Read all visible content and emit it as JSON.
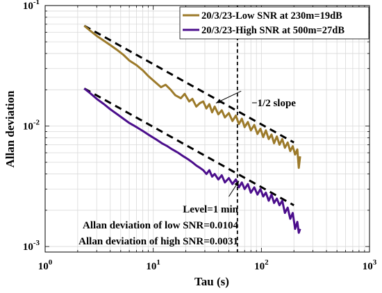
{
  "chart_data": {
    "type": "line",
    "title": "",
    "xlabel": "Tau (s)",
    "ylabel": "Allan deviation",
    "xscale": "log",
    "yscale": "log",
    "xlim": [
      1,
      1000
    ],
    "ylim": [
      0.0009,
      0.1
    ],
    "grid": true,
    "legend_position": "top-right",
    "x_ticks": [
      {
        "value": 1,
        "base": "10",
        "exp": "0"
      },
      {
        "value": 10,
        "base": "10",
        "exp": "1"
      },
      {
        "value": 100,
        "base": "10",
        "exp": "2"
      },
      {
        "value": 1000,
        "base": "10",
        "exp": "3"
      }
    ],
    "y_ticks": [
      {
        "value": 0.001,
        "base": "10",
        "exp": "-3"
      },
      {
        "value": 0.01,
        "base": "10",
        "exp": "-2"
      },
      {
        "value": 0.1,
        "base": "10",
        "exp": "-1"
      }
    ],
    "series": [
      {
        "name": "20/3/23-Low SNR at 230m=19dB",
        "color": "#9C7A2A",
        "points": [
          [
            2.3,
            0.068
          ],
          [
            2.6,
            0.062
          ],
          [
            3.0,
            0.056
          ],
          [
            3.5,
            0.051
          ],
          [
            4.0,
            0.047
          ],
          [
            4.6,
            0.043
          ],
          [
            5.3,
            0.039
          ],
          [
            6.0,
            0.035
          ],
          [
            7.0,
            0.032
          ],
          [
            8.0,
            0.029
          ],
          [
            9.0,
            0.026
          ],
          [
            10.5,
            0.023
          ],
          [
            11.8,
            0.021
          ],
          [
            13.0,
            0.022
          ],
          [
            14.5,
            0.02
          ],
          [
            16.0,
            0.018
          ],
          [
            18.0,
            0.017
          ],
          [
            19.5,
            0.0185
          ],
          [
            21.5,
            0.016
          ],
          [
            23.0,
            0.0168
          ],
          [
            25.0,
            0.0145
          ],
          [
            27.0,
            0.0155
          ],
          [
            29.0,
            0.016
          ],
          [
            31.0,
            0.014
          ],
          [
            33.0,
            0.0152
          ],
          [
            35.0,
            0.013
          ],
          [
            37.0,
            0.0145
          ],
          [
            40.0,
            0.0125
          ],
          [
            43.0,
            0.0135
          ],
          [
            46.0,
            0.0118
          ],
          [
            50.0,
            0.0128
          ],
          [
            54.0,
            0.011
          ],
          [
            58.0,
            0.0122
          ],
          [
            62.0,
            0.0104
          ],
          [
            66.0,
            0.0115
          ],
          [
            70.0,
            0.0098
          ],
          [
            75.0,
            0.0108
          ],
          [
            80.0,
            0.0092
          ],
          [
            86.0,
            0.0102
          ],
          [
            92.0,
            0.0086
          ],
          [
            98.0,
            0.0095
          ],
          [
            104.0,
            0.0081
          ],
          [
            110.0,
            0.0092
          ],
          [
            117.0,
            0.0078
          ],
          [
            124.0,
            0.0085
          ],
          [
            131.0,
            0.0072
          ],
          [
            139.0,
            0.0082
          ],
          [
            147.0,
            0.007
          ],
          [
            156.0,
            0.0078
          ],
          [
            165.0,
            0.0066
          ],
          [
            175.0,
            0.0073
          ],
          [
            185.0,
            0.0062
          ],
          [
            195.0,
            0.0068
          ],
          [
            205.0,
            0.0058
          ],
          [
            215.0,
            0.0064
          ],
          [
            222.0,
            0.0045
          ],
          [
            228.0,
            0.0056
          ]
        ]
      },
      {
        "name": "20/3/23-High SNR at 500m=27dB",
        "color": "#4B0E8C",
        "points": [
          [
            2.3,
            0.0205
          ],
          [
            2.6,
            0.0188
          ],
          [
            3.0,
            0.0168
          ],
          [
            3.5,
            0.0152
          ],
          [
            4.0,
            0.0138
          ],
          [
            4.6,
            0.0126
          ],
          [
            5.3,
            0.0115
          ],
          [
            6.0,
            0.0106
          ],
          [
            7.0,
            0.0098
          ],
          [
            8.0,
            0.0091
          ],
          [
            9.0,
            0.0085
          ],
          [
            10.5,
            0.0078
          ],
          [
            12.0,
            0.0072
          ],
          [
            13.5,
            0.0068
          ],
          [
            15.0,
            0.0064
          ],
          [
            17.0,
            0.006
          ],
          [
            19.0,
            0.0056
          ],
          [
            21.0,
            0.0053
          ],
          [
            23.0,
            0.005
          ],
          [
            25.0,
            0.0047
          ],
          [
            27.0,
            0.0045
          ],
          [
            29.0,
            0.0043
          ],
          [
            31.0,
            0.004
          ],
          [
            33.0,
            0.0043
          ],
          [
            35.0,
            0.0038
          ],
          [
            37.0,
            0.004
          ],
          [
            40.0,
            0.0036
          ],
          [
            43.0,
            0.0039
          ],
          [
            46.0,
            0.0034
          ],
          [
            50.0,
            0.0037
          ],
          [
            54.0,
            0.0033
          ],
          [
            58.0,
            0.0036
          ],
          [
            62.0,
            0.0031
          ],
          [
            66.0,
            0.0034
          ],
          [
            70.0,
            0.003
          ],
          [
            75.0,
            0.0033
          ],
          [
            80.0,
            0.0028
          ],
          [
            86.0,
            0.0031
          ],
          [
            92.0,
            0.0027
          ],
          [
            98.0,
            0.003
          ],
          [
            104.0,
            0.0026
          ],
          [
            110.0,
            0.0028
          ],
          [
            117.0,
            0.0024
          ],
          [
            124.0,
            0.0027
          ],
          [
            131.0,
            0.0023
          ],
          [
            139.0,
            0.0025
          ],
          [
            147.0,
            0.0022
          ],
          [
            156.0,
            0.0024
          ],
          [
            165.0,
            0.0019
          ],
          [
            175.0,
            0.0021
          ],
          [
            185.0,
            0.0017
          ],
          [
            195.0,
            0.0019
          ],
          [
            205.0,
            0.0014
          ],
          [
            215.0,
            0.0016
          ],
          [
            222.0,
            0.0013
          ],
          [
            228.0,
            0.0014
          ]
        ]
      }
    ],
    "reference_lines": [
      {
        "kind": "fit",
        "style": "dashed",
        "color": "#000000",
        "points": [
          [
            2.3,
            0.068
          ],
          [
            200,
            0.0073
          ]
        ]
      },
      {
        "kind": "fit",
        "style": "dashed",
        "color": "#000000",
        "points": [
          [
            2.3,
            0.0205
          ],
          [
            200,
            0.0022
          ]
        ]
      },
      {
        "kind": "vertical",
        "style": "dashed",
        "color": "#000000",
        "x": 60
      }
    ],
    "annotations": [
      {
        "text": "−1/2 slope",
        "arrow_to": [
          38,
          0.0155
        ],
        "anchor": [
          65,
          0.0195
        ]
      },
      {
        "arrow_to": [
          62,
          0.0035
        ],
        "anchor": [
          50,
          0.0026
        ]
      }
    ],
    "annotation_block": {
      "lines": [
        "Level=1 min",
        "Allan deviation of low SNR=0.0104",
        "Allan deviation of high SNR=0.0031"
      ]
    }
  }
}
